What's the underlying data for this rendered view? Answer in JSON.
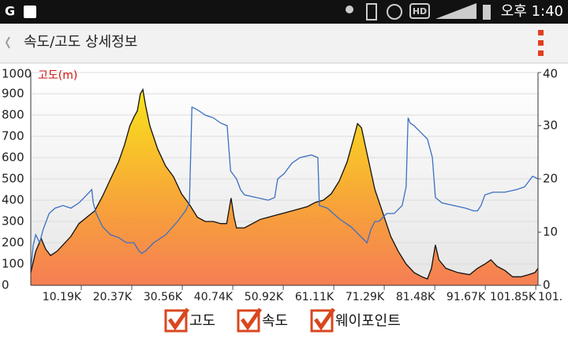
{
  "status_bar": {
    "hd": "HD",
    "time": "오후 1:40"
  },
  "header": {
    "title": "속도/고도 상세정보"
  },
  "chart_data": {
    "type": "area-line",
    "y_label": "고도(m)",
    "xlim": [
      0,
      102300
    ],
    "xticks": [
      {
        "value": 10190,
        "label": "10.19K"
      },
      {
        "value": 20370,
        "label": "20.37K"
      },
      {
        "value": 30560,
        "label": "30.56K"
      },
      {
        "value": 40740,
        "label": "40.74K"
      },
      {
        "value": 50920,
        "label": "50.92K"
      },
      {
        "value": 61110,
        "label": "61.11K"
      },
      {
        "value": 71290,
        "label": "71.29K"
      },
      {
        "value": 81480,
        "label": "81.48K"
      },
      {
        "value": 91670,
        "label": "91.67K"
      },
      {
        "value": 101850,
        "label": "101.85K"
      }
    ],
    "x_end_label": "101.",
    "ylim": [
      0,
      1000
    ],
    "yticks": [
      0,
      100,
      200,
      300,
      400,
      500,
      600,
      700,
      800,
      900,
      1000
    ],
    "y2lim": [
      0,
      40
    ],
    "y2ticks": [
      0,
      10,
      20,
      30,
      40
    ],
    "grid": true,
    "series": [
      {
        "name": "고도",
        "type": "area",
        "color": "#f5a03a",
        "x": [
          0,
          1000,
          2100,
          3000,
          4000,
          5300,
          6500,
          8100,
          9700,
          11300,
          12900,
          14500,
          16100,
          17700,
          18900,
          20000,
          20800,
          21500,
          22100,
          22600,
          23200,
          24000,
          25600,
          27200,
          28800,
          30400,
          32000,
          33600,
          35200,
          36800,
          38300,
          39500,
          40400,
          41000,
          41500,
          43100,
          44700,
          46300,
          47900,
          49500,
          51100,
          52700,
          54300,
          55800,
          57400,
          59000,
          60600,
          62200,
          63800,
          65100,
          65900,
          66700,
          67800,
          69400,
          71000,
          72600,
          74100,
          75700,
          77300,
          78900,
          80000,
          80800,
          81600,
          82300,
          83700,
          86100,
          88500,
          90100,
          91600,
          92800,
          94000,
          95600,
          97200,
          98800,
          100400,
          101700,
          102300
        ],
        "values": [
          60,
          160,
          220,
          170,
          140,
          160,
          190,
          230,
          290,
          320,
          350,
          420,
          500,
          580,
          660,
          750,
          790,
          820,
          900,
          920,
          840,
          750,
          640,
          560,
          510,
          430,
          380,
          320,
          300,
          300,
          290,
          290,
          410,
          320,
          270,
          270,
          290,
          310,
          320,
          330,
          340,
          350,
          360,
          370,
          390,
          400,
          430,
          490,
          580,
          690,
          760,
          740,
          620,
          450,
          340,
          230,
          160,
          100,
          60,
          40,
          30,
          80,
          190,
          120,
          80,
          60,
          50,
          80,
          100,
          120,
          90,
          70,
          40,
          40,
          50,
          60,
          80
        ]
      },
      {
        "name": "속도",
        "type": "line",
        "axis": "y2",
        "color": "#3b6fc2",
        "x": [
          0,
          500,
          1000,
          1800,
          2500,
          3700,
          4900,
          6500,
          8100,
          9700,
          11300,
          12300,
          12600,
          13200,
          14500,
          16100,
          17700,
          19300,
          20800,
          21800,
          22400,
          23200,
          24800,
          27200,
          29600,
          31200,
          32000,
          32500,
          33600,
          35200,
          36800,
          38300,
          39600,
          40300,
          41500,
          42300,
          43100,
          45500,
          47900,
          49200,
          49800,
          51100,
          51900,
          52700,
          54300,
          56600,
          57900,
          58200,
          59800,
          62200,
          64600,
          66200,
          67800,
          68600,
          69400,
          70200,
          71800,
          73300,
          74900,
          75700,
          76100,
          76500,
          77300,
          78900,
          80000,
          81000,
          81600,
          82900,
          85300,
          87700,
          89300,
          90100,
          90800,
          91600,
          93200,
          95600,
          98000,
          99600,
          101200,
          102300
        ],
        "values": [
          3,
          7.5,
          9.5,
          8,
          10.5,
          13.5,
          14.5,
          15,
          14.5,
          15.5,
          17,
          18,
          15.5,
          13.5,
          11,
          9.5,
          9,
          8,
          8,
          6.5,
          6,
          6.5,
          8,
          9.5,
          12,
          14,
          15.5,
          33.5,
          33,
          32,
          31.5,
          30.5,
          30,
          21.5,
          20,
          18,
          17,
          16.5,
          16,
          16.5,
          20,
          21,
          22,
          23,
          24,
          24.5,
          24,
          15,
          14.5,
          12.5,
          11,
          9.5,
          8,
          10.5,
          12,
          12,
          13.5,
          13.5,
          15,
          18.5,
          31.5,
          30.5,
          30,
          28.5,
          27.5,
          24,
          16.5,
          15.5,
          15,
          14.5,
          14,
          14,
          15,
          17,
          17.5,
          17.5,
          18,
          18.5,
          20.5,
          20
        ]
      }
    ],
    "waypoint_label": "웨이포인트"
  }
}
